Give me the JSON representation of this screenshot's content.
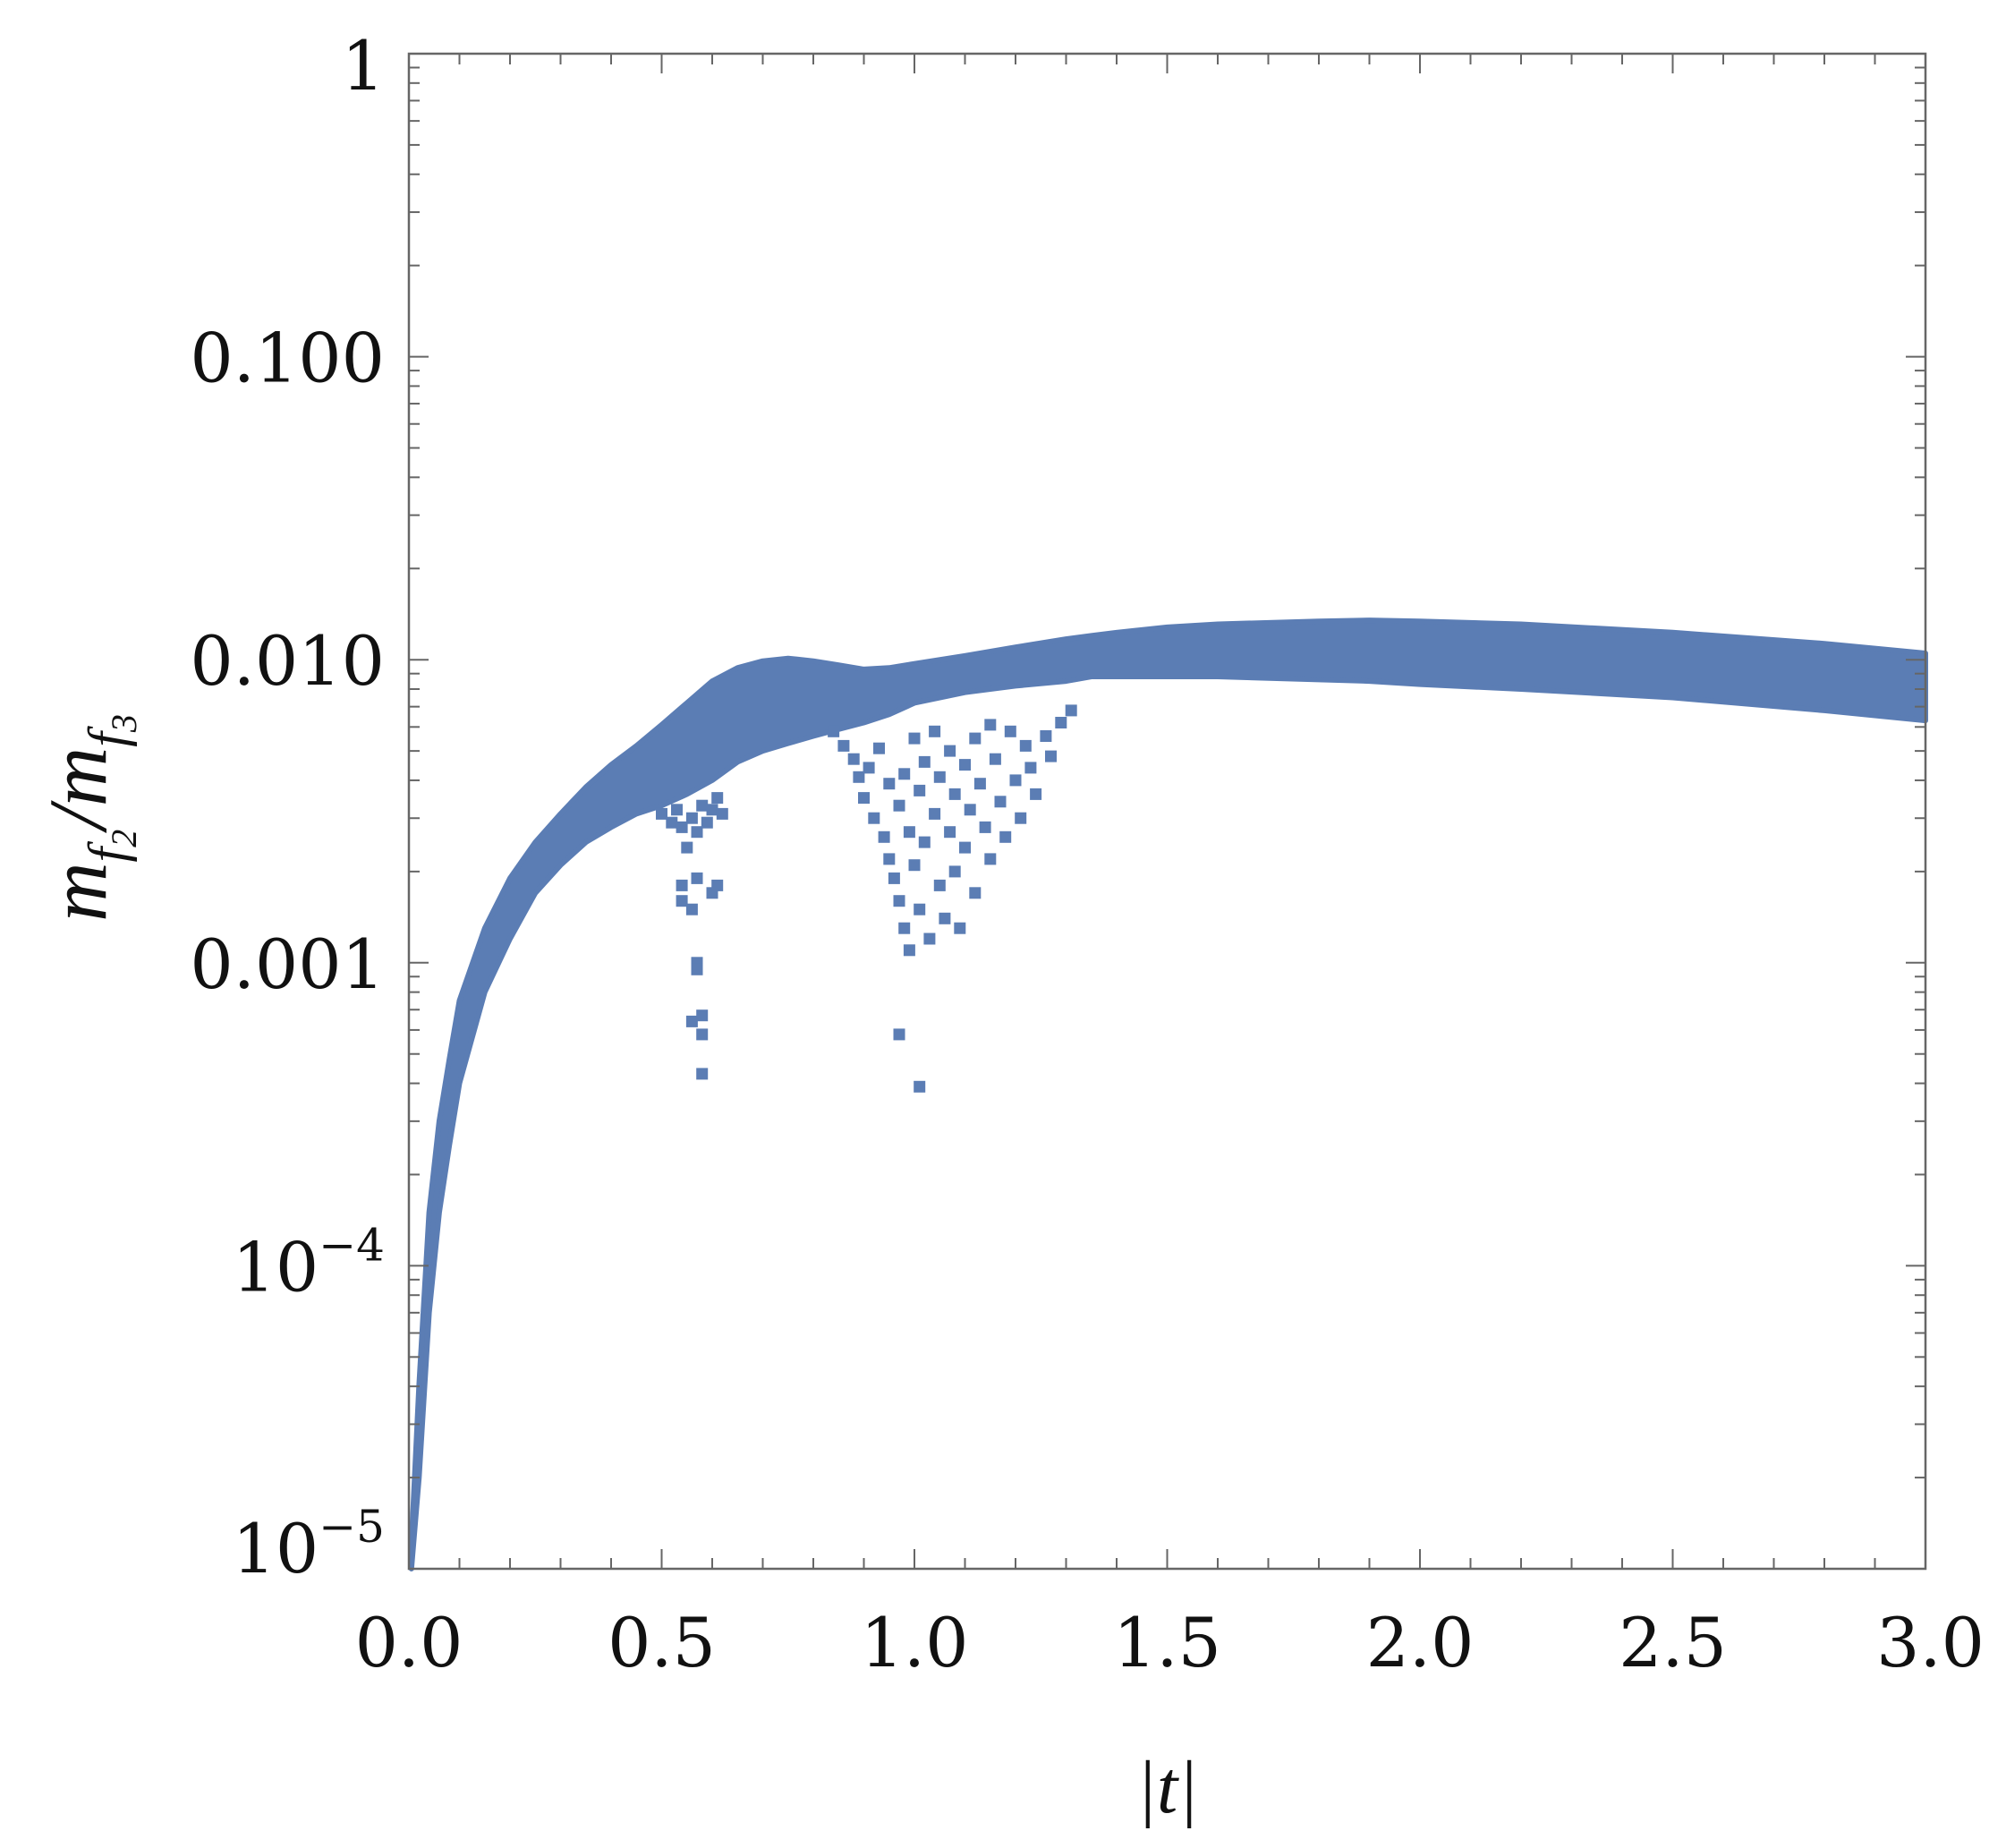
{
  "chart_data": {
    "type": "scatter",
    "title": "",
    "xlabel": "|t|",
    "ylabel": {
      "base": "m",
      "numerator_sub": "f",
      "numerator_subsub": "2",
      "separator": "/",
      "denominator_sub": "f",
      "denominator_subsub": "3"
    },
    "xlim": [
      0,
      3
    ],
    "ylim": [
      1e-05,
      1
    ],
    "yscale": "log",
    "grid": false,
    "marker": "square",
    "color": "#5b7db4",
    "x_ticks": [
      {
        "value": 0.0,
        "label": "0.0"
      },
      {
        "value": 0.5,
        "label": "0.5"
      },
      {
        "value": 1.0,
        "label": "1.0"
      },
      {
        "value": 1.5,
        "label": "1.5"
      },
      {
        "value": 2.0,
        "label": "2.0"
      },
      {
        "value": 2.5,
        "label": "2.5"
      },
      {
        "value": 3.0,
        "label": "3.0"
      }
    ],
    "y_ticks": [
      {
        "value": 1,
        "label": "1"
      },
      {
        "value": 0.1,
        "label": "0.100"
      },
      {
        "value": 0.01,
        "label": "0.010"
      },
      {
        "value": 0.001,
        "label": "0.001"
      },
      {
        "value": 0.0001,
        "label": "10",
        "exponent": "−4"
      },
      {
        "value": 1e-05,
        "label": "10",
        "exponent": "−5"
      }
    ],
    "band": {
      "description_points": "upper and lower envelope of the dense scatter band",
      "x": [
        0.005,
        0.02,
        0.04,
        0.06,
        0.08,
        0.1,
        0.15,
        0.2,
        0.25,
        0.3,
        0.35,
        0.4,
        0.45,
        0.5,
        0.55,
        0.6,
        0.65,
        0.7,
        0.75,
        0.8,
        0.85,
        0.9,
        0.95,
        1.0,
        1.1,
        1.2,
        1.3,
        1.35,
        1.4,
        1.5,
        1.6,
        1.8,
        1.9,
        2.0,
        2.2,
        2.5,
        2.8,
        3.0
      ],
      "upper": [
        1.2e-05,
        4e-05,
        0.00015,
        0.0003,
        0.00048,
        0.00075,
        0.0013,
        0.0019,
        0.0025,
        0.0031,
        0.0038,
        0.0045,
        0.0052,
        0.0061,
        0.0072,
        0.0085,
        0.0094,
        0.0099,
        0.0101,
        0.0099,
        0.0096,
        0.0093,
        0.0094,
        0.0097,
        0.0103,
        0.011,
        0.0117,
        0.012,
        0.0123,
        0.0128,
        0.0131,
        0.0134,
        0.0135,
        0.0134,
        0.0131,
        0.0123,
        0.0113,
        0.0105
      ],
      "lower": [
        1e-05,
        2e-05,
        7e-05,
        0.00015,
        0.00025,
        0.0004,
        0.0008,
        0.0012,
        0.0017,
        0.0021,
        0.0025,
        0.0028,
        0.0031,
        0.0033,
        0.0036,
        0.004,
        0.0046,
        0.005,
        0.0053,
        0.0056,
        0.0059,
        0.0062,
        0.0066,
        0.0072,
        0.0078,
        0.0082,
        0.0085,
        0.0088,
        0.0088,
        0.0088,
        0.0088,
        0.0086,
        0.0085,
        0.0083,
        0.008,
        0.0075,
        0.0068,
        0.0063
      ]
    },
    "outliers": [
      {
        "x": 0.5,
        "y": 0.0031
      },
      {
        "x": 0.52,
        "y": 0.0029
      },
      {
        "x": 0.53,
        "y": 0.0032
      },
      {
        "x": 0.54,
        "y": 0.0028
      },
      {
        "x": 0.55,
        "y": 0.0024
      },
      {
        "x": 0.56,
        "y": 0.003
      },
      {
        "x": 0.57,
        "y": 0.0027
      },
      {
        "x": 0.58,
        "y": 0.0033
      },
      {
        "x": 0.59,
        "y": 0.0029
      },
      {
        "x": 0.6,
        "y": 0.0032
      },
      {
        "x": 0.61,
        "y": 0.0035
      },
      {
        "x": 0.62,
        "y": 0.0031
      },
      {
        "x": 0.54,
        "y": 0.0018
      },
      {
        "x": 0.57,
        "y": 0.0019
      },
      {
        "x": 0.6,
        "y": 0.0017
      },
      {
        "x": 0.54,
        "y": 0.0016
      },
      {
        "x": 0.56,
        "y": 0.0015
      },
      {
        "x": 0.61,
        "y": 0.0018
      },
      {
        "x": 0.57,
        "y": 0.001
      },
      {
        "x": 0.57,
        "y": 0.00095
      },
      {
        "x": 0.56,
        "y": 0.00064
      },
      {
        "x": 0.58,
        "y": 0.00067
      },
      {
        "x": 0.58,
        "y": 0.00058
      },
      {
        "x": 0.58,
        "y": 0.00043
      },
      {
        "x": 0.84,
        "y": 0.0058
      },
      {
        "x": 0.86,
        "y": 0.0052
      },
      {
        "x": 0.88,
        "y": 0.0047
      },
      {
        "x": 0.89,
        "y": 0.0041
      },
      {
        "x": 0.9,
        "y": 0.0035
      },
      {
        "x": 0.91,
        "y": 0.0044
      },
      {
        "x": 0.92,
        "y": 0.003
      },
      {
        "x": 0.93,
        "y": 0.0051
      },
      {
        "x": 0.94,
        "y": 0.0026
      },
      {
        "x": 0.95,
        "y": 0.0039
      },
      {
        "x": 0.95,
        "y": 0.0022
      },
      {
        "x": 0.96,
        "y": 0.0019
      },
      {
        "x": 0.97,
        "y": 0.0033
      },
      {
        "x": 0.97,
        "y": 0.0016
      },
      {
        "x": 0.98,
        "y": 0.0042
      },
      {
        "x": 0.98,
        "y": 0.0013
      },
      {
        "x": 0.99,
        "y": 0.0027
      },
      {
        "x": 0.99,
        "y": 0.0011
      },
      {
        "x": 1.0,
        "y": 0.0055
      },
      {
        "x": 1.0,
        "y": 0.0021
      },
      {
        "x": 1.01,
        "y": 0.0037
      },
      {
        "x": 1.01,
        "y": 0.0015
      },
      {
        "x": 1.02,
        "y": 0.0046
      },
      {
        "x": 1.02,
        "y": 0.0025
      },
      {
        "x": 1.03,
        "y": 0.0012
      },
      {
        "x": 1.04,
        "y": 0.0058
      },
      {
        "x": 1.04,
        "y": 0.0031
      },
      {
        "x": 1.05,
        "y": 0.0018
      },
      {
        "x": 1.05,
        "y": 0.0041
      },
      {
        "x": 1.06,
        "y": 0.0014
      },
      {
        "x": 1.07,
        "y": 0.005
      },
      {
        "x": 1.07,
        "y": 0.0027
      },
      {
        "x": 1.08,
        "y": 0.0036
      },
      {
        "x": 1.08,
        "y": 0.002
      },
      {
        "x": 1.09,
        "y": 0.0013
      },
      {
        "x": 1.1,
        "y": 0.0045
      },
      {
        "x": 1.1,
        "y": 0.0024
      },
      {
        "x": 1.11,
        "y": 0.0032
      },
      {
        "x": 1.12,
        "y": 0.0055
      },
      {
        "x": 1.12,
        "y": 0.0017
      },
      {
        "x": 1.13,
        "y": 0.0039
      },
      {
        "x": 1.14,
        "y": 0.0028
      },
      {
        "x": 1.15,
        "y": 0.0061
      },
      {
        "x": 1.15,
        "y": 0.0022
      },
      {
        "x": 1.16,
        "y": 0.0047
      },
      {
        "x": 1.17,
        "y": 0.0034
      },
      {
        "x": 1.18,
        "y": 0.0026
      },
      {
        "x": 1.19,
        "y": 0.0058
      },
      {
        "x": 1.2,
        "y": 0.004
      },
      {
        "x": 1.21,
        "y": 0.003
      },
      {
        "x": 1.22,
        "y": 0.0052
      },
      {
        "x": 1.23,
        "y": 0.0044
      },
      {
        "x": 1.24,
        "y": 0.0036
      },
      {
        "x": 1.26,
        "y": 0.0056
      },
      {
        "x": 1.27,
        "y": 0.0048
      },
      {
        "x": 1.29,
        "y": 0.0062
      },
      {
        "x": 1.31,
        "y": 0.0068
      },
      {
        "x": 0.97,
        "y": 0.00058
      },
      {
        "x": 1.01,
        "y": 0.00039
      }
    ]
  }
}
